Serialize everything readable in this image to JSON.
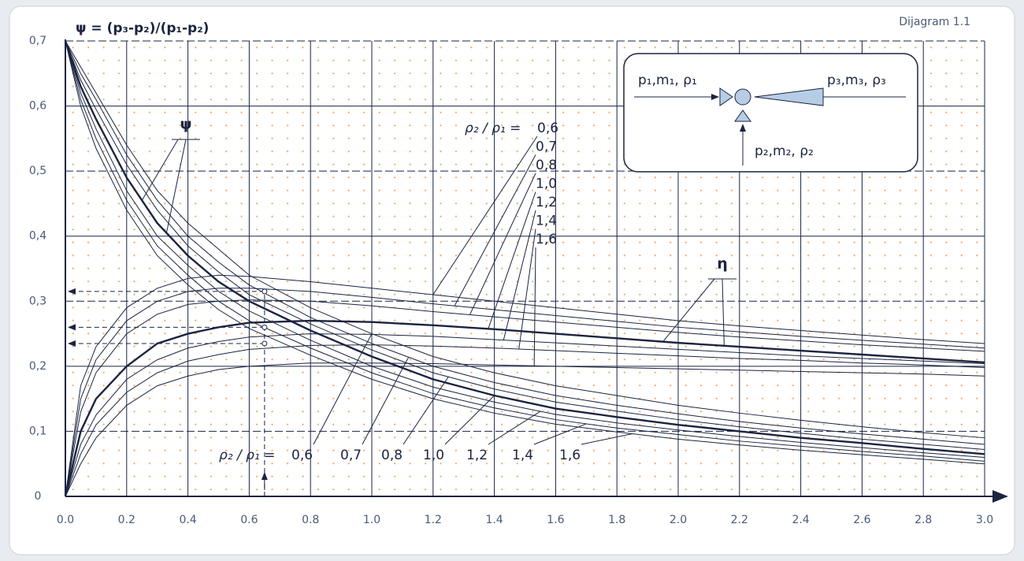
{
  "chart_data": {
    "type": "line",
    "title": "ψ = (p₃-p₂)/(p₁-p₂)",
    "diagram_label": "Dijagram 1.1",
    "inset": {
      "inlet_1": "p₁,m₁, ρ₁",
      "outlet_3": "p₃,m₃, ρ₃",
      "inlet_2": "p₂,m₂, ρ₂"
    },
    "x": [
      0,
      0.05,
      0.1,
      0.2,
      0.3,
      0.4,
      0.5,
      0.6,
      0.8,
      1.0,
      1.2,
      1.4,
      1.6,
      1.8,
      2.0,
      2.2,
      2.4,
      2.6,
      2.8,
      3.0
    ],
    "xlim": [
      0,
      3.0
    ],
    "ylim": [
      0,
      0.7
    ],
    "xticks": [
      {
        "value": 0,
        "label": "0.0"
      },
      0.2,
      0.4,
      0.6,
      0.8,
      {
        "value": 1,
        "label": "1.0"
      },
      1.2,
      1.4,
      1.6,
      1.8,
      {
        "value": 2,
        "label": "2.0"
      },
      2.2,
      2.4,
      2.6,
      2.8,
      {
        "value": 3,
        "label": "3.0"
      }
    ],
    "yticks": [
      0,
      {
        "value": 0.1,
        "label": "0,1"
      },
      {
        "value": 0.2,
        "label": "0,2"
      },
      {
        "value": 0.3,
        "label": "0,3"
      },
      {
        "value": 0.4,
        "label": "0,4"
      },
      {
        "value": 0.5,
        "label": "0,5"
      },
      {
        "value": 0.6,
        "label": "0,6"
      },
      {
        "value": 0.7,
        "label": "0,7"
      }
    ],
    "grid": true,
    "example_x": 0.65,
    "example_y": [
      0.315,
      0.26,
      0.235
    ],
    "families": [
      {
        "label": "ψ",
        "ratio_label": "ρ₂ / ρ₁ =",
        "series": [
          {
            "name": "0,6",
            "color": "#1b2440",
            "width": 1,
            "values": [
              0.7,
              0.66,
              0.62,
              0.54,
              0.47,
              0.42,
              0.38,
              0.34,
              0.29,
              0.25,
              0.215,
              0.19,
              0.17,
              0.155,
              0.14,
              0.128,
              0.117,
              0.107,
              0.098,
              0.09
            ]
          },
          {
            "name": "0,7",
            "color": "#1b2440",
            "width": 1,
            "values": [
              0.7,
              0.65,
              0.61,
              0.525,
              0.455,
              0.4,
              0.36,
              0.325,
              0.275,
              0.235,
              0.2,
              0.175,
              0.155,
              0.14,
              0.127,
              0.115,
              0.105,
              0.096,
              0.088,
              0.08
            ]
          },
          {
            "name": "0,8",
            "color": "#1b2440",
            "width": 1,
            "values": [
              0.7,
              0.64,
              0.595,
              0.51,
              0.44,
              0.385,
              0.345,
              0.31,
              0.265,
              0.225,
              0.19,
              0.165,
              0.145,
              0.131,
              0.118,
              0.107,
              0.097,
              0.088,
              0.08,
              0.072
            ]
          },
          {
            "name": "1,0",
            "color": "#1b2440",
            "width": 2.4,
            "values": [
              0.7,
              0.63,
              0.58,
              0.49,
              0.42,
              0.37,
              0.33,
              0.3,
              0.255,
              0.215,
              0.18,
              0.155,
              0.135,
              0.122,
              0.11,
              0.1,
              0.09,
              0.082,
              0.073,
              0.065
            ]
          },
          {
            "name": "1,2",
            "color": "#1b2440",
            "width": 1,
            "values": [
              0.7,
              0.62,
              0.565,
              0.47,
              0.4,
              0.355,
              0.315,
              0.285,
              0.24,
              0.2,
              0.168,
              0.145,
              0.126,
              0.113,
              0.102,
              0.092,
              0.083,
              0.075,
              0.067,
              0.06
            ]
          },
          {
            "name": "1,4",
            "color": "#1b2440",
            "width": 1,
            "values": [
              0.7,
              0.61,
              0.55,
              0.455,
              0.385,
              0.34,
              0.3,
              0.27,
              0.228,
              0.19,
              0.158,
              0.136,
              0.118,
              0.105,
              0.095,
              0.085,
              0.077,
              0.069,
              0.062,
              0.054
            ]
          },
          {
            "name": "1,6",
            "color": "#1b2440",
            "width": 1,
            "values": [
              0.7,
              0.6,
              0.535,
              0.44,
              0.37,
              0.325,
              0.287,
              0.258,
              0.217,
              0.18,
              0.15,
              0.128,
              0.111,
              0.099,
              0.088,
              0.079,
              0.071,
              0.064,
              0.057,
              0.05
            ]
          }
        ]
      },
      {
        "label": "η",
        "ratio_label": "ρ₂ / ρ₁ =",
        "series": [
          {
            "name": "0,6",
            "color": "#1b2440",
            "width": 1,
            "values": [
              0,
              0.17,
              0.23,
              0.29,
              0.32,
              0.335,
              0.34,
              0.338,
              0.33,
              0.32,
              0.31,
              0.3,
              0.29,
              0.28,
              0.27,
              0.262,
              0.255,
              0.248,
              0.241,
              0.235
            ]
          },
          {
            "name": "0,7",
            "color": "#1b2440",
            "width": 1,
            "values": [
              0,
              0.15,
              0.21,
              0.27,
              0.3,
              0.315,
              0.32,
              0.32,
              0.315,
              0.306,
              0.296,
              0.287,
              0.278,
              0.269,
              0.26,
              0.253,
              0.246,
              0.24,
              0.234,
              0.228
            ]
          },
          {
            "name": "0,8",
            "color": "#1b2440",
            "width": 1,
            "values": [
              0,
              0.13,
              0.19,
              0.25,
              0.28,
              0.295,
              0.3,
              0.302,
              0.3,
              0.293,
              0.284,
              0.276,
              0.268,
              0.26,
              0.252,
              0.245,
              0.239,
              0.233,
              0.228,
              0.223
            ]
          },
          {
            "name": "1,0",
            "color": "#1b2440",
            "width": 2.4,
            "values": [
              0,
              0.1,
              0.15,
              0.2,
              0.235,
              0.25,
              0.26,
              0.267,
              0.27,
              0.268,
              0.263,
              0.257,
              0.25,
              0.243,
              0.236,
              0.23,
              0.224,
              0.218,
              0.212,
              0.206
            ]
          },
          {
            "name": "1,2",
            "color": "#1b2440",
            "width": 1,
            "values": [
              0,
              0.08,
              0.125,
              0.18,
              0.21,
              0.228,
              0.238,
              0.245,
              0.25,
              0.249,
              0.246,
              0.241,
              0.236,
              0.231,
              0.226,
              0.221,
              0.216,
              0.212,
              0.208,
              0.204
            ]
          },
          {
            "name": "1,4",
            "color": "#1b2440",
            "width": 1,
            "values": [
              0,
              0.065,
              0.11,
              0.16,
              0.19,
              0.208,
              0.218,
              0.226,
              0.232,
              0.233,
              0.231,
              0.228,
              0.224,
              0.22,
              0.216,
              0.212,
              0.209,
              0.205,
              0.202,
              0.198
            ]
          },
          {
            "name": "1,6",
            "color": "#1b2440",
            "width": 1,
            "values": [
              0,
              0.05,
              0.09,
              0.14,
              0.17,
              0.185,
              0.195,
              0.2,
              0.205,
              0.205,
              0.204,
              0.202,
              0.2,
              0.198,
              0.196,
              0.194,
              0.192,
              0.19,
              0.188,
              0.185
            ]
          }
        ]
      }
    ]
  }
}
